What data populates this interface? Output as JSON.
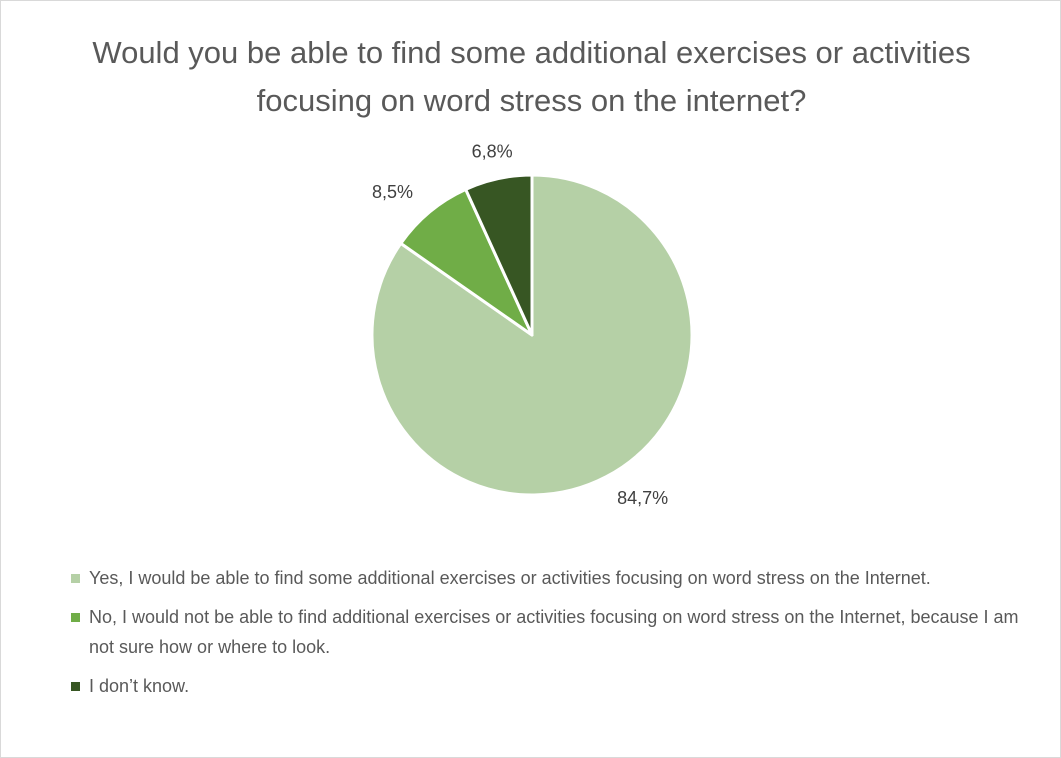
{
  "chart_data": {
    "type": "pie",
    "title": "Would you be able to find some additional exercises or activities focusing on word stress on the internet?",
    "legend_position": "bottom",
    "slices": [
      {
        "name": "Yes, I would be able to find some additional exercises or activities focusing on word stress on the Internet.",
        "value": 84.7,
        "label": "84,7%",
        "color": "#b5d0a6"
      },
      {
        "name": "No, I would not be able to find additional exercises or activities focusing on word stress on the Internet, because I am not sure how or where to look.",
        "value": 8.5,
        "label": "8,5%",
        "color": "#70ad47"
      },
      {
        "name": "I don’t know.",
        "value": 6.8,
        "label": "6,8%",
        "color": "#375623"
      }
    ]
  }
}
